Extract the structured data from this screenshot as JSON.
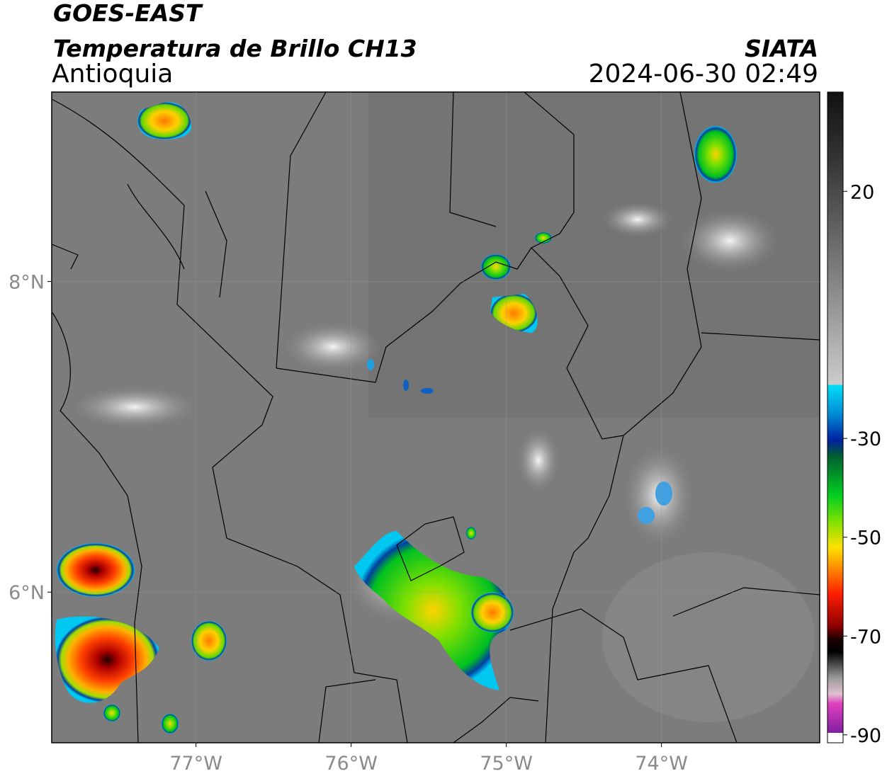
{
  "header": {
    "title": "GOES-EAST",
    "subtitle": "Temperatura de Brillo CH13",
    "region": "Antioquia",
    "source": "SIATA",
    "datetime": "2024-06-30 02:49"
  },
  "map": {
    "lonlim": [
      -77.93,
      -72.98
    ],
    "latlim": [
      5.03,
      9.22
    ],
    "lon_ticks": [
      {
        "value": -77,
        "label": "77°W"
      },
      {
        "value": -76,
        "label": "76°W"
      },
      {
        "value": -75,
        "label": "75°W"
      },
      {
        "value": -74,
        "label": "74°W"
      }
    ],
    "lat_ticks": [
      {
        "value": 8,
        "label": "8°N"
      },
      {
        "value": 6,
        "label": "6°N"
      }
    ]
  },
  "colorbar": {
    "lim": [
      -91.6,
      40.1
    ],
    "ticks": [
      20,
      -30,
      -50,
      -70,
      -90
    ]
  }
}
